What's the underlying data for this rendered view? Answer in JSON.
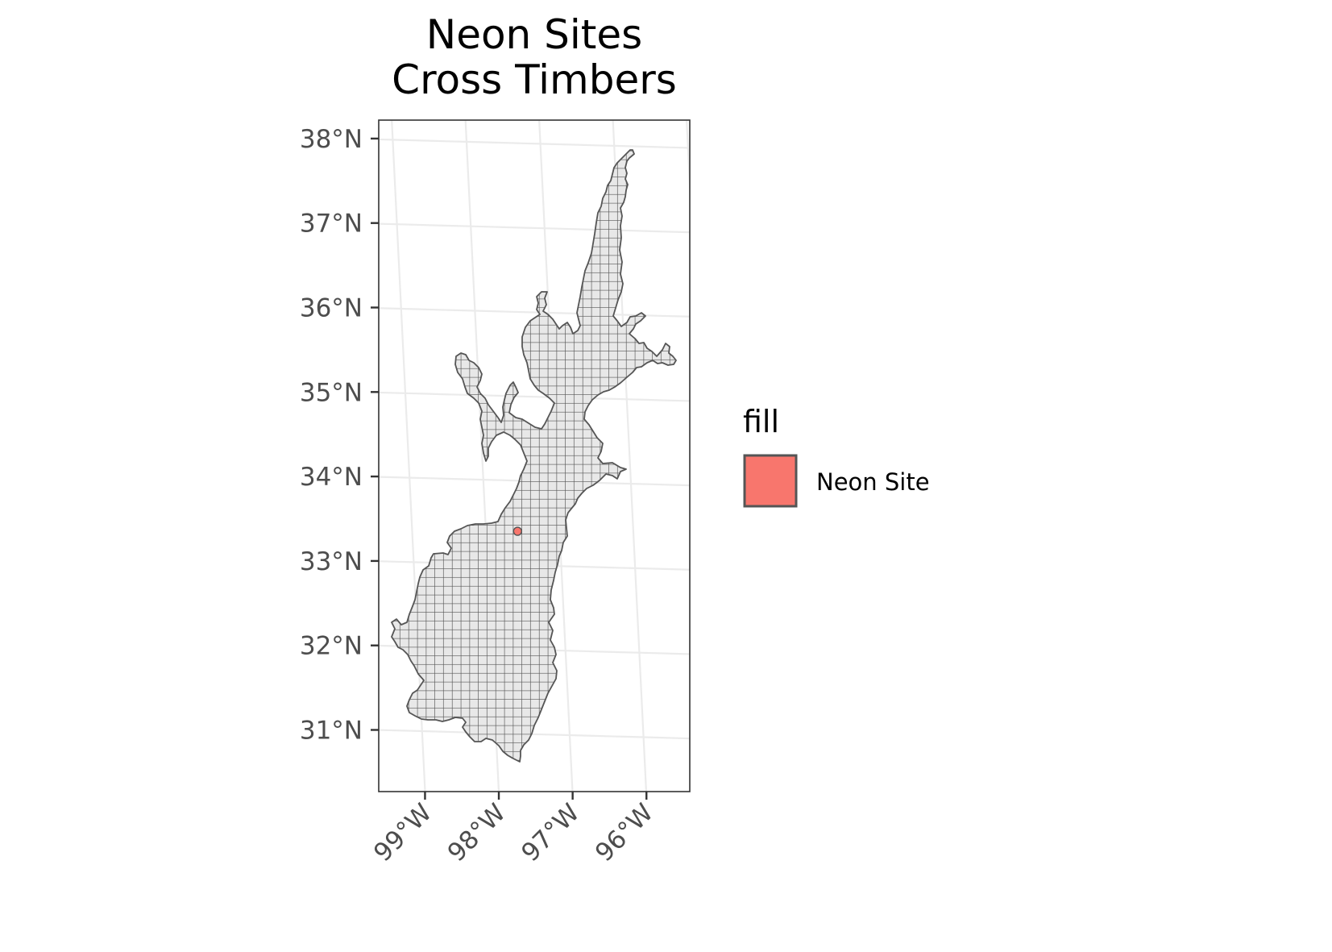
{
  "title": {
    "line1": "Neon Sites",
    "line2": "Cross Timbers"
  },
  "map_data": {
    "type": "map",
    "projection": "conic",
    "graticule": true,
    "region": "Cross Timbers",
    "lat_ticks": [
      {
        "value": 38,
        "label": "38°N"
      },
      {
        "value": 37,
        "label": "37°N"
      },
      {
        "value": 36,
        "label": "36°N"
      },
      {
        "value": 35,
        "label": "35°N"
      },
      {
        "value": 34,
        "label": "34°N"
      },
      {
        "value": 33,
        "label": "33°N"
      },
      {
        "value": 32,
        "label": "32°N"
      },
      {
        "value": 31,
        "label": "31°N"
      }
    ],
    "lon_ticks": [
      {
        "value": -99,
        "label": "99°W"
      },
      {
        "value": -98,
        "label": "98°W"
      },
      {
        "value": -97,
        "label": "97°W"
      },
      {
        "value": -96,
        "label": "96°W"
      }
    ],
    "sites": [
      {
        "name": "Neon Site",
        "lon": -97.57,
        "lat": 33.4,
        "color": "#F8766D"
      }
    ],
    "region_fill": "#e8e8e8",
    "region_stroke": "#555555"
  },
  "legend": {
    "title": "fill",
    "placement": "right",
    "entries": [
      {
        "label": "Neon Site",
        "color": "#F8766D"
      }
    ]
  }
}
